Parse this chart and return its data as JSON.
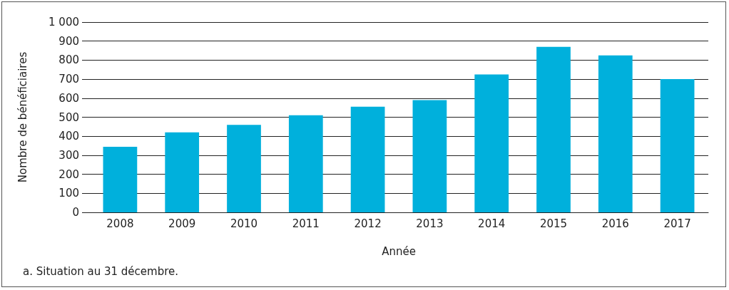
{
  "chart_data": {
    "type": "bar",
    "xlabel": "Année",
    "ylabel": "Nombre de bénéficiaires",
    "categories": [
      "2008",
      "2009",
      "2010",
      "2011",
      "2012",
      "2013",
      "2014",
      "2015",
      "2016",
      "2017"
    ],
    "values": [
      345,
      420,
      460,
      510,
      555,
      590,
      725,
      870,
      825,
      700
    ],
    "color": "#00b0dc",
    "ylim": [
      0,
      1000
    ],
    "yticks": [
      0,
      100,
      200,
      300,
      400,
      500,
      600,
      700,
      800,
      900,
      {
        "value": 1000,
        "label": "1 000"
      }
    ],
    "grid": "y",
    "annotations": [
      "a. Situation au 31 décembre."
    ]
  }
}
